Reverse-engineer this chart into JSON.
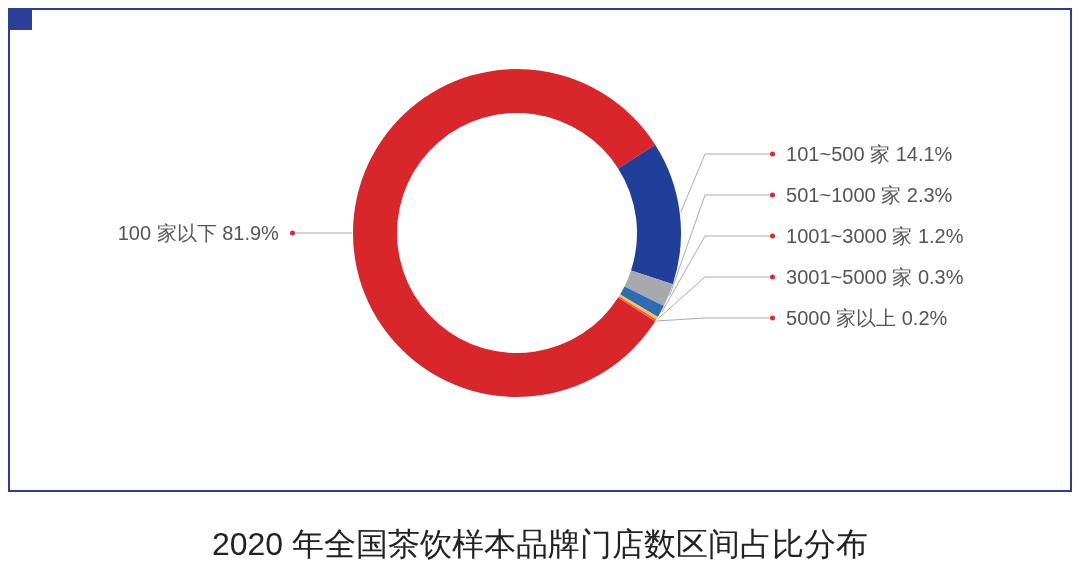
{
  "chart_data": {
    "type": "donut",
    "title": "2020 年全国茶饮样本品牌门店数区间占比分布",
    "categories": [
      "100 家以下",
      "101~500 家",
      "501~1000 家",
      "1001~3000 家",
      "3001~5000 家",
      "5000 家以上"
    ],
    "values": [
      81.9,
      14.1,
      2.3,
      1.2,
      0.3,
      0.2
    ],
    "value_labels": [
      "81.9%",
      "14.1%",
      "2.3%",
      "1.2%",
      "0.3%",
      "0.2%"
    ],
    "colors": [
      "#d8262b",
      "#1f3f9b",
      "#a7a9ac",
      "#2d6db4",
      "#f7c35c",
      "#e1653c"
    ],
    "legend": false
  }
}
